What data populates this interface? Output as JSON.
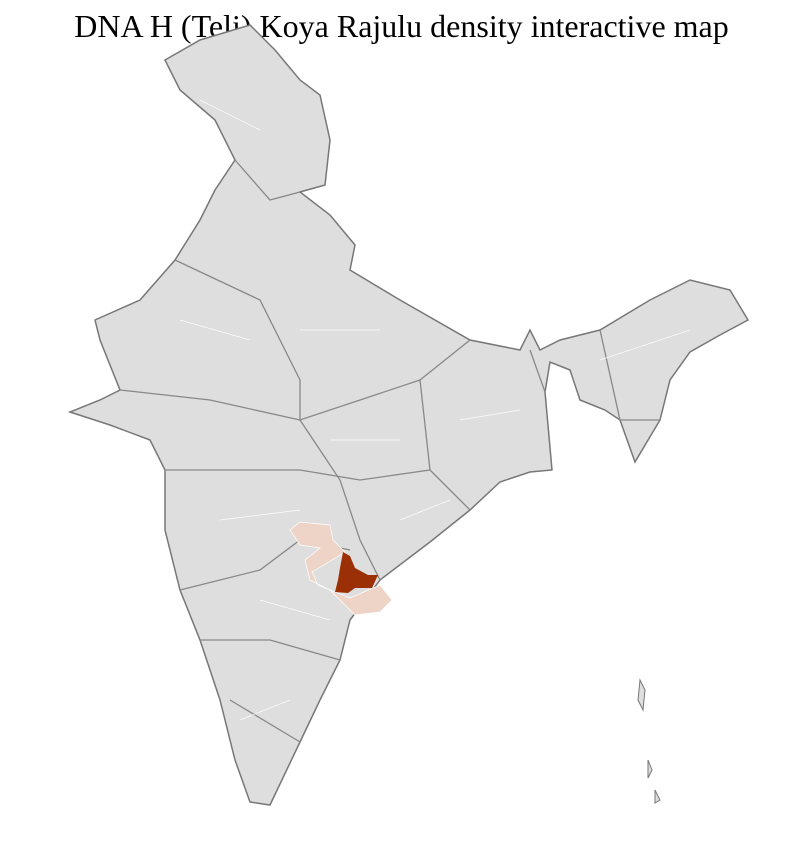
{
  "title": "DNA H (Teli) Koya Rajulu density interactive map",
  "colors": {
    "base_fill": "#dedede",
    "state_border": "#777777",
    "district_border": "#ffffff",
    "low_density": "#eed4c6",
    "high_density": "#9b2f05"
  }
}
